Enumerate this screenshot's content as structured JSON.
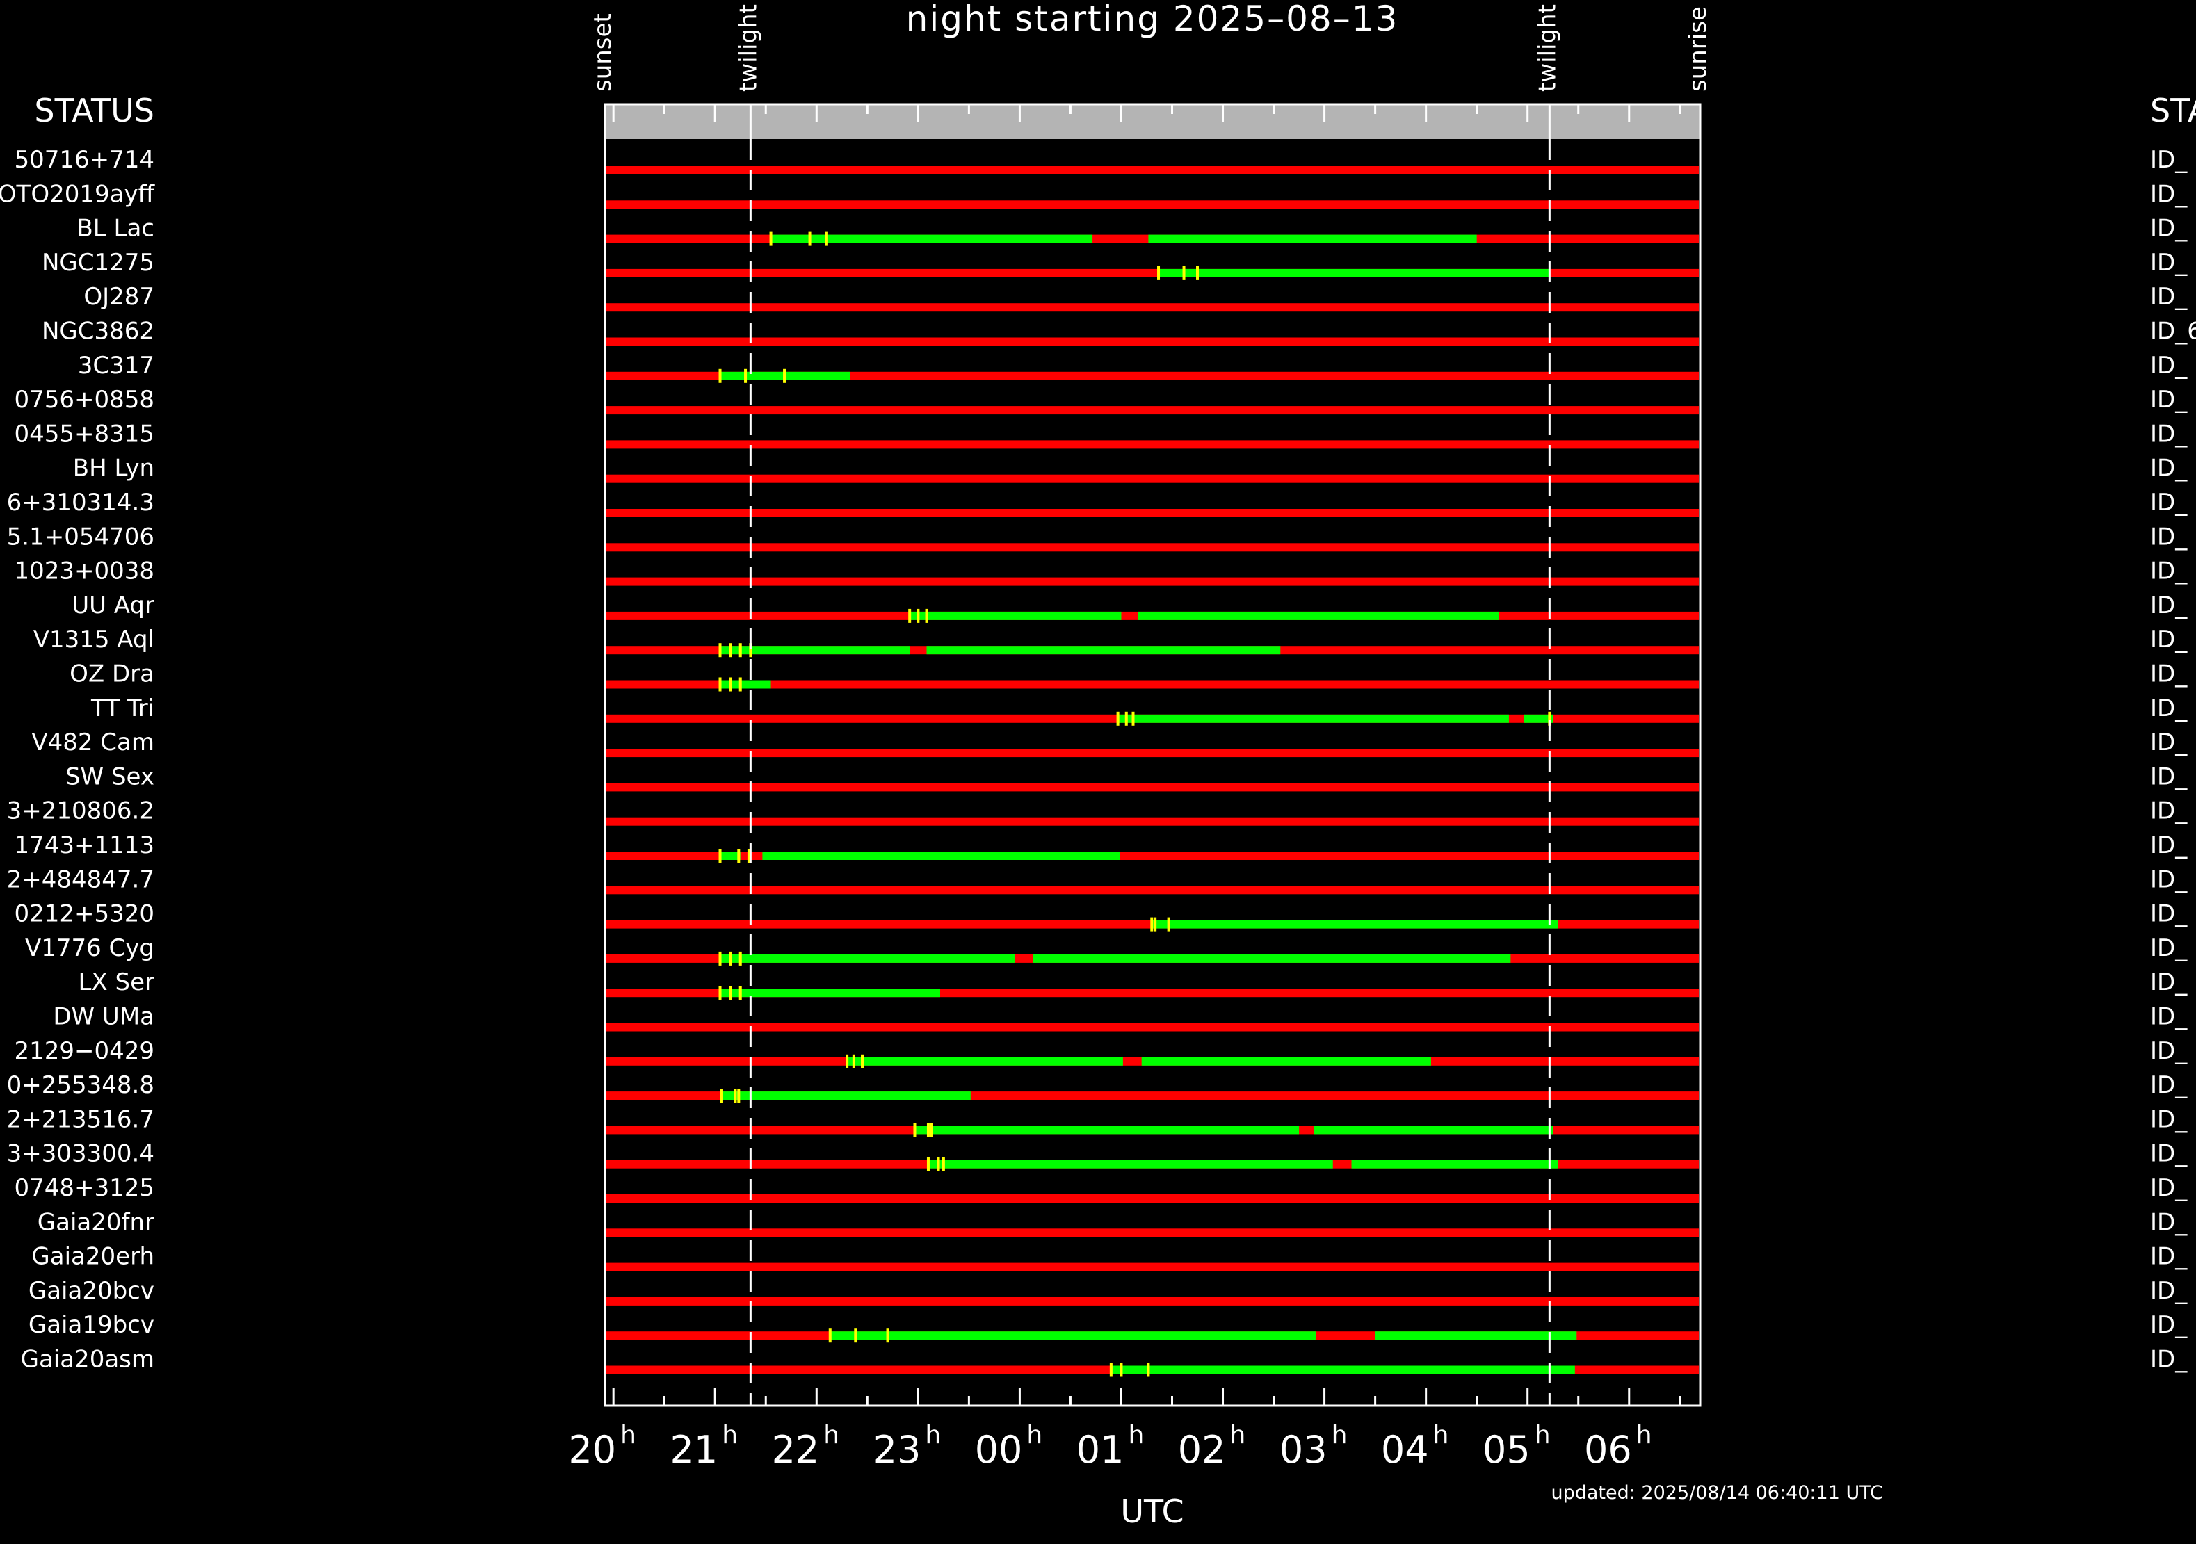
{
  "chart_data": {
    "type": "timeline",
    "title": "night starting 2025–08–13",
    "xlabel": "UTC",
    "updated": "updated: 2025/08/14 06:40:11 UTC",
    "status_left": "STATUS",
    "status_right": "STA",
    "x_range": [
      "19:55",
      "06:42"
    ],
    "x_ticks": [
      {
        "time": "20:00",
        "hour": "20",
        "sup": "h"
      },
      {
        "time": "21:00",
        "hour": "21",
        "sup": "h"
      },
      {
        "time": "22:00",
        "hour": "22",
        "sup": "h"
      },
      {
        "time": "23:00",
        "hour": "23",
        "sup": "h"
      },
      {
        "time": "00:00",
        "hour": "00",
        "sup": "h"
      },
      {
        "time": "01:00",
        "hour": "01",
        "sup": "h"
      },
      {
        "time": "02:00",
        "hour": "02",
        "sup": "h"
      },
      {
        "time": "03:00",
        "hour": "03",
        "sup": "h"
      },
      {
        "time": "04:00",
        "hour": "04",
        "sup": "h"
      },
      {
        "time": "05:00",
        "hour": "05",
        "sup": "h"
      },
      {
        "time": "06:00",
        "hour": "06",
        "sup": "h"
      }
    ],
    "events": [
      {
        "label": "sunset",
        "time": "19:55",
        "line": false
      },
      {
        "label": "twilight",
        "time": "21:21",
        "line": true
      },
      {
        "label": "twilight",
        "time": "05:13",
        "line": true
      },
      {
        "label": "sunrise",
        "time": "06:42",
        "line": false
      }
    ],
    "colors": {
      "unavailable": "#ff0000",
      "observable": "#00ff00",
      "marker": "#ffff00",
      "band": "#b4b4b4"
    },
    "rows": [
      {
        "name": "50716+714",
        "right_id": "ID_",
        "green": [],
        "markers": []
      },
      {
        "name": "OTO2019ayff",
        "right_id": "ID_",
        "green": [],
        "markers": []
      },
      {
        "name": "BL Lac",
        "right_id": "ID_",
        "green": [
          [
            "21:33",
            "00:43"
          ],
          [
            "01:16",
            "04:30"
          ]
        ],
        "markers": [
          "21:33",
          "21:56",
          "22:06"
        ]
      },
      {
        "name": "NGC1275",
        "right_id": "ID_",
        "green": [
          [
            "01:22",
            "05:13"
          ]
        ],
        "markers": [
          "01:22",
          "01:37",
          "01:45"
        ]
      },
      {
        "name": "OJ287",
        "right_id": "ID_",
        "green": [],
        "markers": []
      },
      {
        "name": "NGC3862",
        "right_id": "ID_6",
        "green": [],
        "markers": []
      },
      {
        "name": "3C317",
        "right_id": "ID_",
        "green": [
          [
            "21:03",
            "22:20"
          ]
        ],
        "markers": [
          "21:03",
          "21:18",
          "21:41"
        ]
      },
      {
        "name": "0756+0858",
        "right_id": "ID_",
        "green": [],
        "markers": []
      },
      {
        "name": "0455+8315",
        "right_id": "ID_",
        "green": [],
        "markers": []
      },
      {
        "name": "BH Lyn",
        "right_id": "ID_",
        "green": [],
        "markers": []
      },
      {
        "name": "6+310314.3",
        "right_id": "ID_",
        "green": [],
        "markers": []
      },
      {
        "name": "5.1+054706",
        "right_id": "ID_",
        "green": [],
        "markers": []
      },
      {
        "name": "1023+0038",
        "right_id": "ID_",
        "green": [],
        "markers": []
      },
      {
        "name": "UU Aqr",
        "right_id": "ID_",
        "green": [
          [
            "22:55",
            "01:00"
          ],
          [
            "01:10",
            "04:43"
          ]
        ],
        "markers": [
          "22:55",
          "23:00",
          "23:05"
        ]
      },
      {
        "name": "V1315 Aql",
        "right_id": "ID_",
        "green": [
          [
            "21:03",
            "22:55"
          ],
          [
            "23:05",
            "02:34"
          ]
        ],
        "markers": [
          "21:03",
          "21:09",
          "21:15",
          "21:21"
        ]
      },
      {
        "name": "OZ Dra",
        "right_id": "ID_",
        "green": [
          [
            "21:03",
            "21:33"
          ]
        ],
        "markers": [
          "21:03",
          "21:09",
          "21:15"
        ]
      },
      {
        "name": "TT Tri",
        "right_id": "ID_",
        "green": [
          [
            "00:58",
            "04:49"
          ],
          [
            "04:58",
            "05:15"
          ]
        ],
        "markers": [
          "00:58",
          "01:03",
          "01:07",
          "05:13"
        ]
      },
      {
        "name": "V482 Cam",
        "right_id": "ID_",
        "green": [],
        "markers": []
      },
      {
        "name": "SW Sex",
        "right_id": "ID_",
        "green": [],
        "markers": []
      },
      {
        "name": "3+210806.2",
        "right_id": "ID_",
        "green": [],
        "markers": []
      },
      {
        "name": "1743+1113",
        "right_id": "ID_",
        "green": [
          [
            "21:03",
            "21:15"
          ],
          [
            "21:28",
            "00:59"
          ]
        ],
        "markers": [
          "21:03",
          "21:14",
          "21:20"
        ]
      },
      {
        "name": "2+484847.7",
        "right_id": "ID_",
        "green": [],
        "markers": []
      },
      {
        "name": "0212+5320",
        "right_id": "ID_",
        "green": [
          [
            "01:18",
            "05:18"
          ]
        ],
        "markers": [
          "01:18",
          "01:20",
          "01:28"
        ]
      },
      {
        "name": "V1776 Cyg",
        "right_id": "ID_",
        "green": [
          [
            "21:03",
            "23:57"
          ],
          [
            "00:08",
            "04:50"
          ]
        ],
        "markers": [
          "21:03",
          "21:09",
          "21:15"
        ]
      },
      {
        "name": "LX Ser",
        "right_id": "ID_",
        "green": [
          [
            "21:03",
            "23:13"
          ]
        ],
        "markers": [
          "21:03",
          "21:09",
          "21:15"
        ]
      },
      {
        "name": "DW UMa",
        "right_id": "ID_",
        "green": [],
        "markers": []
      },
      {
        "name": "2129−0429",
        "right_id": "ID_",
        "green": [
          [
            "22:18",
            "01:01"
          ],
          [
            "01:12",
            "04:03"
          ]
        ],
        "markers": [
          "22:18",
          "22:22",
          "22:27"
        ]
      },
      {
        "name": "0+255348.8",
        "right_id": "ID_",
        "green": [
          [
            "21:04",
            "23:31"
          ]
        ],
        "markers": [
          "21:04",
          "21:12",
          "21:14"
        ]
      },
      {
        "name": "2+213516.7",
        "right_id": "ID_",
        "green": [
          [
            "22:58",
            "02:45"
          ],
          [
            "02:54",
            "05:15"
          ]
        ],
        "markers": [
          "22:58",
          "23:06",
          "23:08"
        ]
      },
      {
        "name": "3+303300.4",
        "right_id": "ID_",
        "green": [
          [
            "23:06",
            "03:05"
          ],
          [
            "03:16",
            "05:18"
          ]
        ],
        "markers": [
          "23:06",
          "23:12",
          "23:15"
        ]
      },
      {
        "name": "0748+3125",
        "right_id": "ID_",
        "green": [],
        "markers": []
      },
      {
        "name": "Gaia20fnr",
        "right_id": "ID_",
        "green": [],
        "markers": []
      },
      {
        "name": "Gaia20erh",
        "right_id": "ID_",
        "green": [],
        "markers": []
      },
      {
        "name": "Gaia20bcv",
        "right_id": "ID_",
        "green": [],
        "markers": []
      },
      {
        "name": "Gaia19bcv",
        "right_id": "ID_",
        "green": [
          [
            "22:08",
            "02:55"
          ],
          [
            "03:30",
            "05:29"
          ]
        ],
        "markers": [
          "22:08",
          "22:23",
          "22:42"
        ]
      },
      {
        "name": "Gaia20asm",
        "right_id": "ID_",
        "green": [
          [
            "00:54",
            "05:28"
          ]
        ],
        "markers": [
          "00:54",
          "01:00",
          "01:16"
        ]
      }
    ]
  }
}
